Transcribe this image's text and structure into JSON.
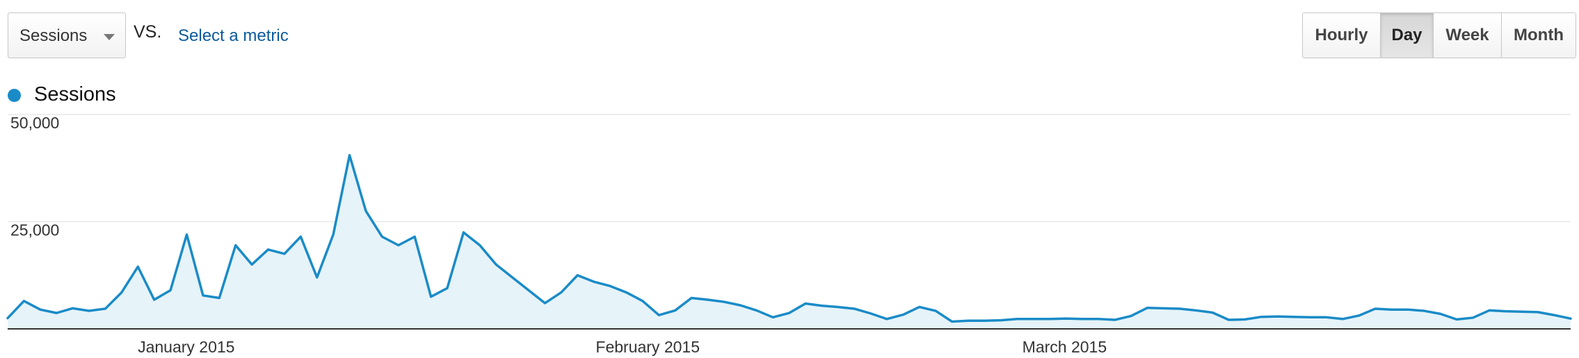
{
  "toolbar": {
    "metric_label": "Sessions",
    "vs_label": "VS.",
    "select_metric_label": "Select a metric",
    "periods": [
      "Hourly",
      "Day",
      "Week",
      "Month"
    ],
    "active_period": "Day"
  },
  "colors": {
    "series": "#1a8bc7",
    "fill": "#e6f3f9",
    "grid": "#e8e8e8",
    "axis": "#333333"
  },
  "chart_data": {
    "type": "area",
    "title": "",
    "xlabel": "",
    "ylabel": "",
    "ylim": [
      0,
      50000
    ],
    "yticks": [
      25000,
      50000
    ],
    "ytick_labels": [
      "25,000",
      "50,000"
    ],
    "grid": true,
    "legend": "top-left",
    "x_start": "2014-12-20",
    "x_end": "2015-04-04",
    "xtick_dates": [
      "2015-01-01",
      "2015-02-01",
      "2015-03-01"
    ],
    "xtick_labels": [
      "January 2015",
      "February 2015",
      "March 2015"
    ],
    "series": [
      {
        "name": "Sessions",
        "values": [
          2500,
          6500,
          4500,
          3700,
          4800,
          4200,
          4700,
          8500,
          14500,
          6800,
          9000,
          22000,
          7800,
          7200,
          19500,
          15000,
          18500,
          17500,
          21500,
          12000,
          22000,
          40500,
          27500,
          21500,
          19500,
          21500,
          7500,
          9500,
          22500,
          19500,
          15000,
          12000,
          9000,
          6000,
          8500,
          12500,
          11000,
          10000,
          8500,
          6500,
          3200,
          4300,
          7200,
          6800,
          6300,
          5500,
          4300,
          2700,
          3700,
          5900,
          5400,
          5100,
          4700,
          3600,
          2300,
          3300,
          5100,
          4200,
          1700,
          1900,
          1900,
          2000,
          2300,
          2300,
          2300,
          2400,
          2300,
          2300,
          2100,
          3000,
          4900,
          4800,
          4700,
          4300,
          3800,
          2100,
          2200,
          2800,
          2900,
          2800,
          2700,
          2700,
          2300,
          3100,
          4700,
          4500,
          4500,
          4200,
          3500,
          2200,
          2600,
          4300,
          4100,
          4000,
          3900,
          3200,
          2400
        ]
      }
    ]
  }
}
